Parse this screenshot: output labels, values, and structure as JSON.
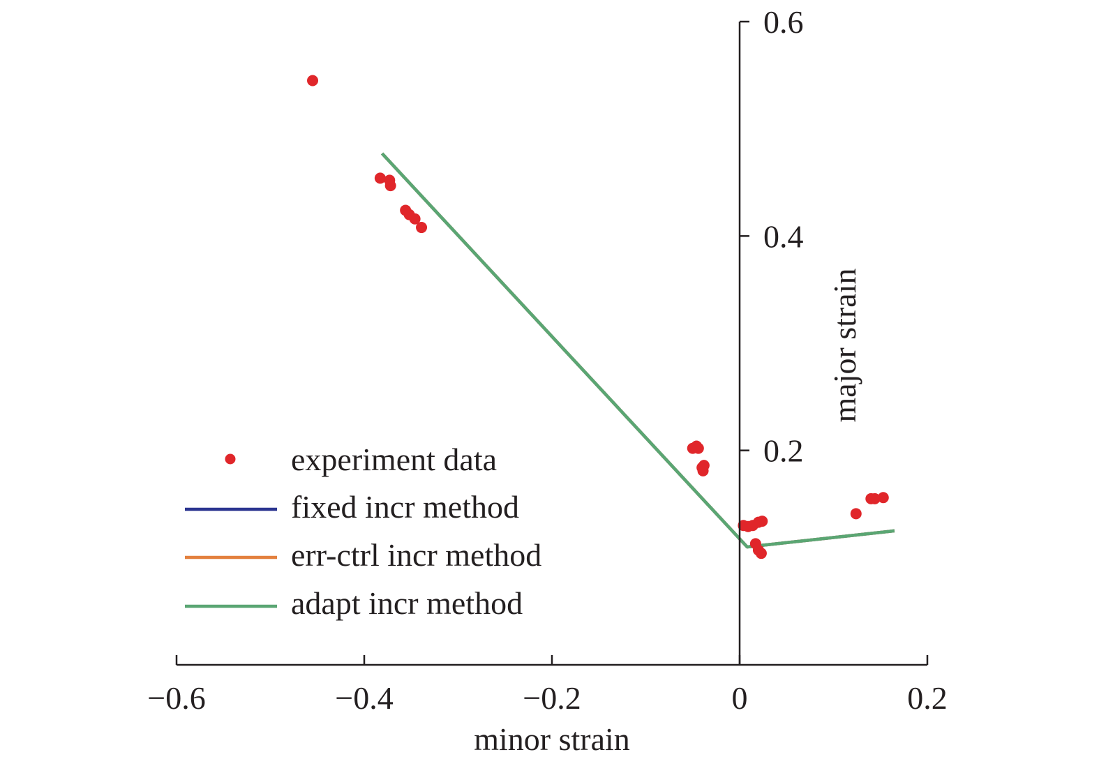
{
  "chart_data": {
    "type": "scatter",
    "title": "",
    "xlabel": "minor strain",
    "ylabel": "major strain",
    "xlim": [
      -0.6,
      0.2
    ],
    "ylim": [
      0.0,
      0.6
    ],
    "x_ticks": [
      -0.6,
      -0.4,
      -0.2,
      0,
      0.2
    ],
    "x_tick_labels": [
      "−0.6",
      "−0.4",
      "−0.2",
      "0",
      "0.2"
    ],
    "y_ticks": [
      0.2,
      0.4,
      0.6
    ],
    "y_tick_labels": [
      "0.2",
      "0.4",
      "0.6"
    ],
    "legend_position": "lower-left",
    "series": [
      {
        "name": "experiment data",
        "kind": "scatter",
        "color": "#e0262a",
        "points": [
          [
            -0.455,
            0.545
          ],
          [
            -0.383,
            0.454
          ],
          [
            -0.373,
            0.452
          ],
          [
            -0.372,
            0.447
          ],
          [
            -0.356,
            0.424
          ],
          [
            -0.352,
            0.42
          ],
          [
            -0.346,
            0.416
          ],
          [
            -0.339,
            0.408
          ],
          [
            -0.05,
            0.202
          ],
          [
            -0.046,
            0.204
          ],
          [
            -0.044,
            0.202
          ],
          [
            -0.04,
            0.184
          ],
          [
            -0.038,
            0.186
          ],
          [
            -0.039,
            0.181
          ],
          [
            0.004,
            0.13
          ],
          [
            0.009,
            0.129
          ],
          [
            0.014,
            0.13
          ],
          [
            0.02,
            0.133
          ],
          [
            0.024,
            0.134
          ],
          [
            0.017,
            0.113
          ],
          [
            0.02,
            0.107
          ],
          [
            0.023,
            0.104
          ],
          [
            0.124,
            0.141
          ],
          [
            0.14,
            0.155
          ],
          [
            0.144,
            0.155
          ],
          [
            0.153,
            0.156
          ]
        ]
      },
      {
        "name": "fixed incr method",
        "kind": "line",
        "color": "#2b3590",
        "points": [
          [
            -0.381,
            0.477
          ],
          [
            0.008,
            0.11
          ],
          [
            0.165,
            0.125
          ]
        ]
      },
      {
        "name": "err-ctrl incr method",
        "kind": "line",
        "color": "#e3803e",
        "points": [
          [
            -0.381,
            0.477
          ],
          [
            0.008,
            0.11
          ],
          [
            0.165,
            0.125
          ]
        ]
      },
      {
        "name": "adapt incr method",
        "kind": "line",
        "color": "#5aa673",
        "points": [
          [
            -0.381,
            0.477
          ],
          [
            0.008,
            0.11
          ],
          [
            0.165,
            0.125
          ]
        ]
      }
    ]
  }
}
